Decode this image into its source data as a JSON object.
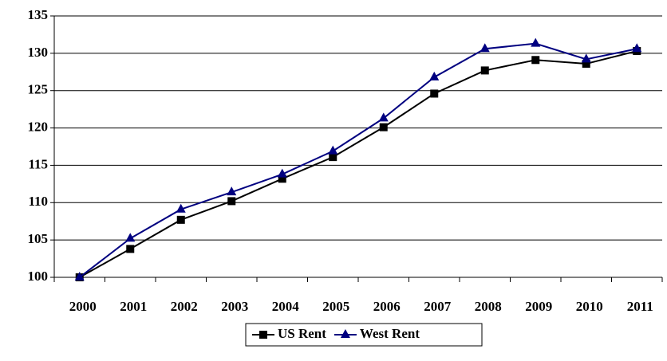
{
  "chart_data": {
    "type": "line",
    "categories": [
      "2000",
      "2001",
      "2002",
      "2003",
      "2004",
      "2005",
      "2006",
      "2007",
      "2008",
      "2009",
      "2010",
      "2011"
    ],
    "series": [
      {
        "name": "US Rent",
        "color": "#000000",
        "marker": "square",
        "values": [
          100,
          103.8,
          107.7,
          110.2,
          113.2,
          116.1,
          120.1,
          124.6,
          127.7,
          129.1,
          128.6,
          130.3
        ]
      },
      {
        "name": "West Rent",
        "color": "#000080",
        "marker": "triangle",
        "values": [
          100,
          105.2,
          109.1,
          111.4,
          113.8,
          116.9,
          121.3,
          126.8,
          130.6,
          131.3,
          129.2,
          130.6
        ]
      }
    ],
    "ylim": [
      100,
      135
    ],
    "yticks": [
      100,
      105,
      110,
      115,
      120,
      125,
      130,
      135
    ],
    "grid": true,
    "legend": "bottom"
  }
}
